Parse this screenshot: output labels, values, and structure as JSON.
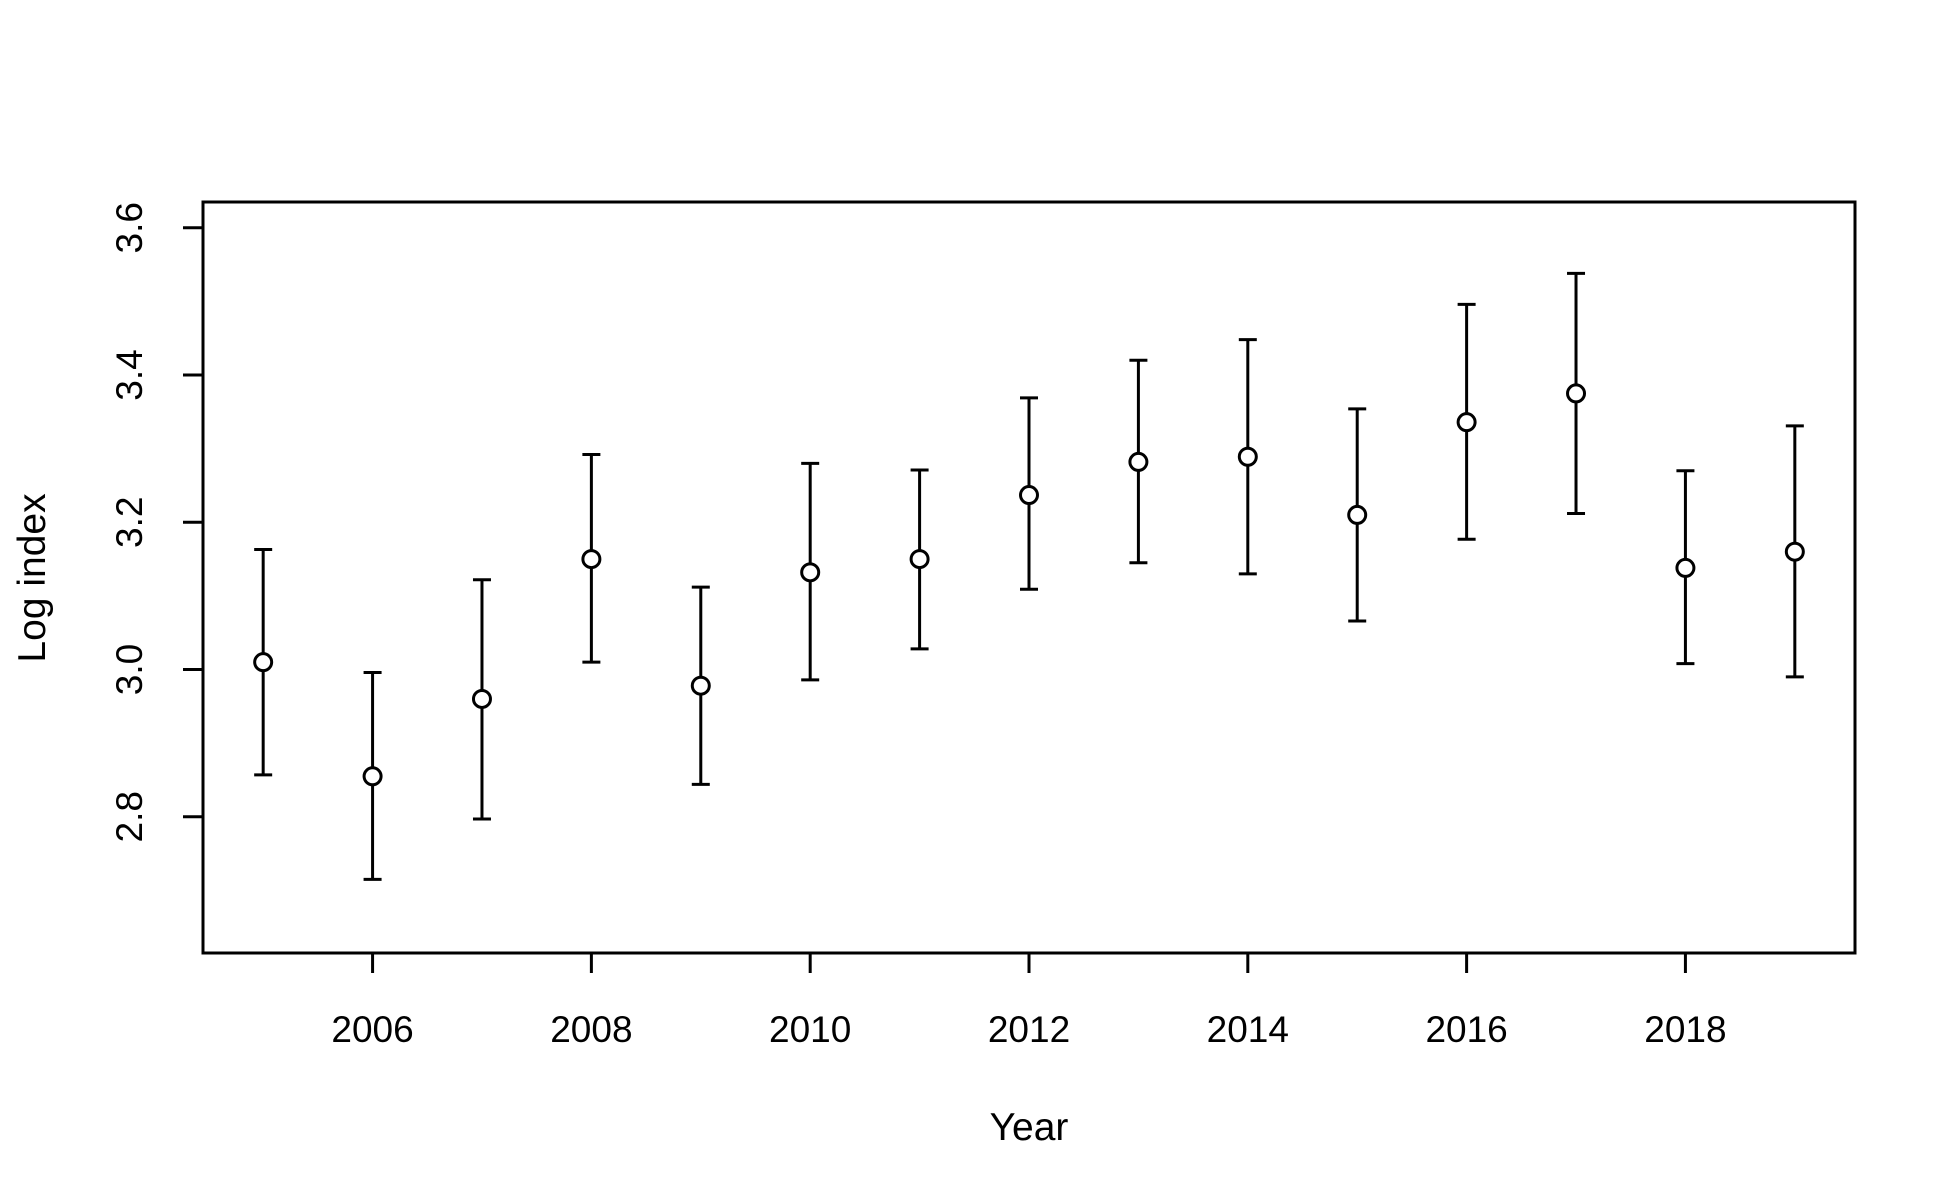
{
  "chart_data": {
    "type": "scatter",
    "xlabel": "Year",
    "ylabel": "Log index",
    "xlim": [
      2004.45,
      2019.55
    ],
    "ylim": [
      2.615,
      3.635
    ],
    "x_ticks": [
      2006,
      2008,
      2010,
      2012,
      2014,
      2016,
      2018
    ],
    "y_ticks": [
      2.8,
      3.0,
      3.2,
      3.4,
      3.6
    ],
    "x_tick_labels": [
      "2006",
      "2008",
      "2010",
      "2012",
      "2014",
      "2016",
      "2018"
    ],
    "y_tick_labels": [
      "2.8",
      "3.0",
      "3.2",
      "3.4",
      "3.6"
    ],
    "grid": false,
    "legend": "none",
    "marker": "open-circle",
    "error_bars": true,
    "series": [
      {
        "points": [
          {
            "x": 2005,
            "y": 3.01,
            "lower": 2.857,
            "upper": 3.163
          },
          {
            "x": 2006,
            "y": 2.855,
            "lower": 2.715,
            "upper": 2.996
          },
          {
            "x": 2007,
            "y": 2.96,
            "lower": 2.797,
            "upper": 3.122
          },
          {
            "x": 2008,
            "y": 3.15,
            "lower": 3.01,
            "upper": 3.292
          },
          {
            "x": 2009,
            "y": 2.978,
            "lower": 2.844,
            "upper": 3.112
          },
          {
            "x": 2010,
            "y": 3.132,
            "lower": 2.986,
            "upper": 3.28
          },
          {
            "x": 2011,
            "y": 3.15,
            "lower": 3.028,
            "upper": 3.271
          },
          {
            "x": 2012,
            "y": 3.237,
            "lower": 3.109,
            "upper": 3.369
          },
          {
            "x": 2013,
            "y": 3.282,
            "lower": 3.145,
            "upper": 3.42
          },
          {
            "x": 2014,
            "y": 3.289,
            "lower": 3.13,
            "upper": 3.448
          },
          {
            "x": 2015,
            "y": 3.21,
            "lower": 3.066,
            "upper": 3.354
          },
          {
            "x": 2016,
            "y": 3.336,
            "lower": 3.177,
            "upper": 3.496
          },
          {
            "x": 2017,
            "y": 3.375,
            "lower": 3.212,
            "upper": 3.538
          },
          {
            "x": 2018,
            "y": 3.138,
            "lower": 3.008,
            "upper": 3.27
          },
          {
            "x": 2019,
            "y": 3.16,
            "lower": 2.99,
            "upper": 3.331
          }
        ]
      }
    ],
    "colors": {
      "line": "#000000",
      "marker_fill": "#ffffff",
      "background": "#ffffff"
    }
  }
}
